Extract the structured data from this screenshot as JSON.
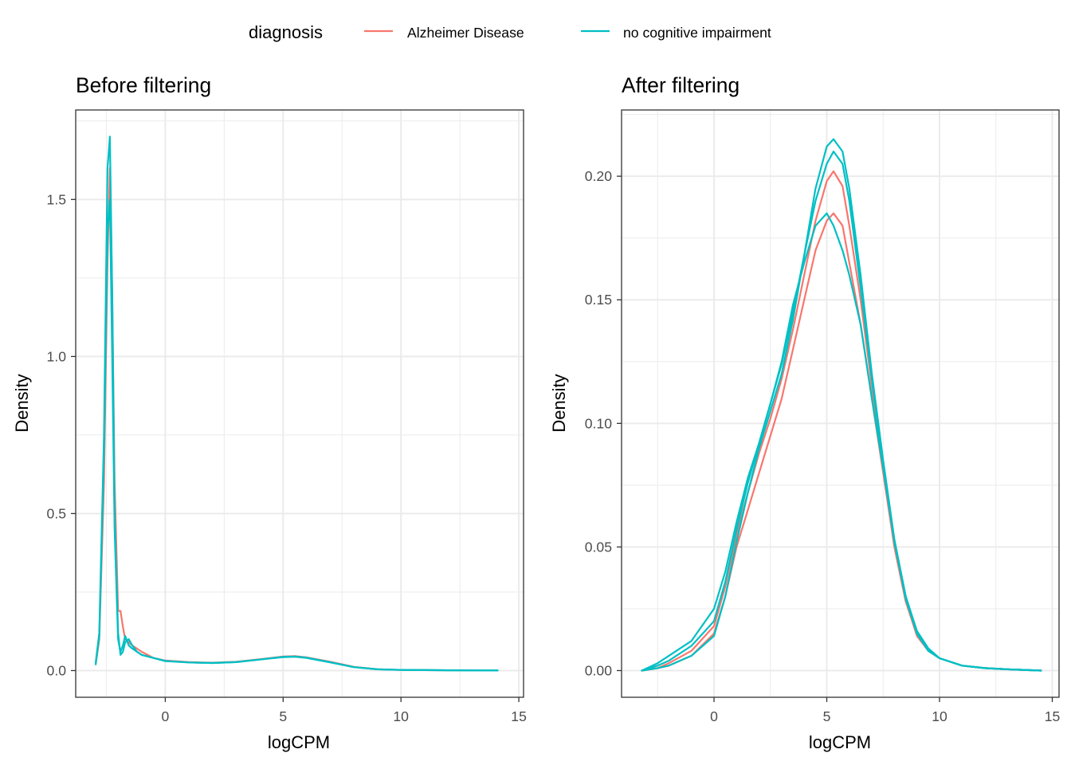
{
  "legend": {
    "title": "diagnosis",
    "entries": [
      {
        "label": "Alzheimer Disease",
        "color": "#F8766D"
      },
      {
        "label": "no cognitive impairment",
        "color": "#00BFC4"
      }
    ]
  },
  "chart_data": [
    {
      "type": "line",
      "title": "Before filtering",
      "xlabel": "logCPM",
      "ylabel": "Density",
      "xlim": [
        -3.8,
        15.2
      ],
      "ylim": [
        -0.085,
        1.785
      ],
      "xticks": [
        0,
        5,
        10,
        15
      ],
      "yticks": [
        0.0,
        0.5,
        1.0,
        1.5
      ],
      "ytick_labels": [
        "0.0",
        "0.5",
        "1.0",
        "1.5"
      ],
      "grid": true,
      "series": [
        {
          "group": "Alzheimer Disease",
          "x": [
            -2.95,
            -2.8,
            -2.6,
            -2.45,
            -2.35,
            -2.25,
            -2.15,
            -2.0,
            -1.9,
            -1.8,
            -1.7,
            -1.55,
            -1.4,
            -1.2,
            -1.0,
            -0.5,
            0,
            1,
            2,
            3,
            4,
            5,
            5.5,
            6,
            7,
            8,
            9,
            10,
            11,
            12,
            13,
            14.1
          ],
          "y": [
            0.02,
            0.1,
            0.6,
            1.3,
            1.6,
            1.2,
            0.6,
            0.19,
            0.19,
            0.14,
            0.1,
            0.09,
            0.08,
            0.07,
            0.06,
            0.04,
            0.032,
            0.027,
            0.025,
            0.028,
            0.036,
            0.045,
            0.046,
            0.042,
            0.028,
            0.012,
            0.004,
            0.002,
            0.0015,
            0.001,
            0.0006,
            0.0003
          ]
        },
        {
          "group": "no cognitive impairment",
          "x": [
            -2.95,
            -2.8,
            -2.6,
            -2.45,
            -2.35,
            -2.25,
            -2.15,
            -2.0,
            -1.9,
            -1.8,
            -1.7,
            -1.55,
            -1.4,
            -1.2,
            -1.0,
            -0.5,
            0,
            1,
            2,
            3,
            4,
            5,
            5.5,
            6,
            7,
            8,
            9,
            10,
            11,
            12,
            13,
            14.1
          ],
          "y": [
            0.025,
            0.12,
            0.75,
            1.6,
            1.7,
            1.2,
            0.5,
            0.12,
            0.05,
            0.06,
            0.09,
            0.1,
            0.08,
            0.06,
            0.05,
            0.04,
            0.031,
            0.026,
            0.024,
            0.027,
            0.035,
            0.044,
            0.045,
            0.041,
            0.027,
            0.011,
            0.004,
            0.002,
            0.0015,
            0.001,
            0.0006,
            0.0003
          ]
        },
        {
          "group": "no cognitive impairment",
          "x": [
            -2.95,
            -2.8,
            -2.6,
            -2.45,
            -2.35,
            -2.25,
            -2.15,
            -2.0,
            -1.9,
            -1.8,
            -1.7,
            -1.55,
            -1.4,
            -1.2,
            -1.0,
            -0.5,
            0,
            1,
            2,
            3,
            4,
            5,
            5.5,
            6,
            7,
            8,
            9,
            10,
            11,
            12,
            13,
            14.1
          ],
          "y": [
            0.02,
            0.11,
            0.7,
            1.4,
            1.5,
            1.0,
            0.45,
            0.1,
            0.06,
            0.08,
            0.11,
            0.08,
            0.07,
            0.06,
            0.05,
            0.04,
            0.03,
            0.026,
            0.024,
            0.027,
            0.035,
            0.043,
            0.044,
            0.04,
            0.026,
            0.011,
            0.004,
            0.002,
            0.0015,
            0.001,
            0.0006,
            0.0003
          ]
        }
      ]
    },
    {
      "type": "line",
      "title": "After filtering",
      "xlabel": "logCPM",
      "ylabel": "Density",
      "xlim": [
        -4.1,
        15.3
      ],
      "ylim": [
        -0.0108,
        0.2268
      ],
      "xticks": [
        0,
        5,
        10,
        15
      ],
      "yticks": [
        0.0,
        0.05,
        0.1,
        0.15,
        0.2
      ],
      "ytick_labels": [
        "0.00",
        "0.05",
        "0.10",
        "0.15",
        "0.20"
      ],
      "grid": true,
      "series": [
        {
          "group": "Alzheimer Disease",
          "x": [
            -3.2,
            -2.5,
            -2,
            -1,
            0,
            0.5,
            1,
            1.5,
            2,
            2.5,
            3,
            3.5,
            4,
            4.5,
            5,
            5.3,
            5.7,
            6,
            6.5,
            7,
            7.5,
            8,
            8.5,
            9,
            9.5,
            10,
            11,
            12,
            13,
            14.5
          ],
          "y": [
            0,
            0.001,
            0.002,
            0.006,
            0.015,
            0.03,
            0.05,
            0.065,
            0.08,
            0.095,
            0.11,
            0.13,
            0.15,
            0.17,
            0.182,
            0.185,
            0.18,
            0.165,
            0.14,
            0.11,
            0.08,
            0.05,
            0.028,
            0.015,
            0.008,
            0.005,
            0.002,
            0.001,
            0.0005,
            0
          ]
        },
        {
          "group": "Alzheimer Disease",
          "x": [
            -3.2,
            -2.5,
            -2,
            -1,
            0,
            0.5,
            1,
            1.5,
            2,
            2.5,
            3,
            3.5,
            4,
            4.5,
            5,
            5.3,
            5.7,
            6,
            6.5,
            7,
            7.5,
            8,
            8.5,
            9,
            9.5,
            10,
            11,
            12,
            13,
            14.5
          ],
          "y": [
            0,
            0.001,
            0.003,
            0.008,
            0.018,
            0.034,
            0.055,
            0.072,
            0.088,
            0.102,
            0.118,
            0.138,
            0.16,
            0.182,
            0.198,
            0.202,
            0.196,
            0.18,
            0.15,
            0.115,
            0.082,
            0.05,
            0.028,
            0.014,
            0.008,
            0.005,
            0.002,
            0.001,
            0.0005,
            0
          ]
        },
        {
          "group": "no cognitive impairment",
          "x": [
            -3.2,
            -2.5,
            -2,
            -1,
            0,
            0.5,
            1,
            1.5,
            2,
            2.5,
            3,
            3.5,
            4,
            4.5,
            5,
            5.3,
            5.7,
            6,
            6.5,
            7,
            7.5,
            8,
            8.5,
            9,
            9.5,
            10,
            11,
            12,
            13,
            14.5
          ],
          "y": [
            0,
            0.003,
            0.006,
            0.012,
            0.025,
            0.04,
            0.06,
            0.078,
            0.092,
            0.108,
            0.125,
            0.148,
            0.165,
            0.18,
            0.185,
            0.18,
            0.17,
            0.16,
            0.14,
            0.11,
            0.082,
            0.052,
            0.03,
            0.016,
            0.009,
            0.005,
            0.002,
            0.001,
            0.0005,
            0
          ]
        },
        {
          "group": "no cognitive impairment",
          "x": [
            -3.2,
            -2.5,
            -2,
            -1,
            0,
            0.5,
            1,
            1.5,
            2,
            2.5,
            3,
            3.5,
            4,
            4.5,
            5,
            5.3,
            5.7,
            6,
            6.5,
            7,
            7.5,
            8,
            8.5,
            9,
            9.5,
            10,
            11,
            12,
            13,
            14.5
          ],
          "y": [
            0,
            0.002,
            0.004,
            0.01,
            0.02,
            0.036,
            0.057,
            0.076,
            0.092,
            0.108,
            0.124,
            0.145,
            0.168,
            0.19,
            0.205,
            0.21,
            0.205,
            0.19,
            0.155,
            0.118,
            0.084,
            0.052,
            0.029,
            0.015,
            0.008,
            0.005,
            0.002,
            0.001,
            0.0005,
            0
          ]
        },
        {
          "group": "no cognitive impairment",
          "x": [
            -3.2,
            -2.5,
            -2,
            -1,
            0,
            0.5,
            1,
            1.5,
            2,
            2.5,
            3,
            3.5,
            4,
            4.5,
            5,
            5.3,
            5.7,
            6,
            6.5,
            7,
            7.5,
            8,
            8.5,
            9,
            9.5,
            10,
            11,
            12,
            13,
            14.5
          ],
          "y": [
            0,
            0.001,
            0.002,
            0.006,
            0.014,
            0.03,
            0.052,
            0.072,
            0.09,
            0.105,
            0.12,
            0.142,
            0.168,
            0.195,
            0.212,
            0.215,
            0.21,
            0.195,
            0.16,
            0.12,
            0.085,
            0.053,
            0.03,
            0.015,
            0.008,
            0.005,
            0.002,
            0.001,
            0.0005,
            0
          ]
        }
      ]
    }
  ]
}
